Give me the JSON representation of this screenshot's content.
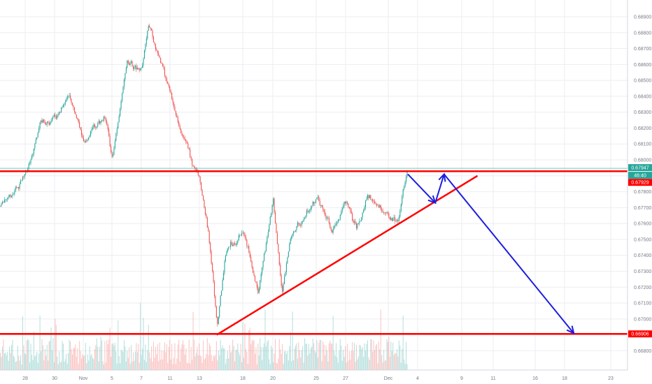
{
  "chart_data": {
    "type": "candlestick",
    "title": "",
    "xlabel": "",
    "ylabel": "",
    "grid": true,
    "ylim": [
      0.6675,
      0.6895
    ],
    "x_ticks": [
      "28",
      "30",
      "Nov",
      "5",
      "7",
      "11",
      "13",
      "18",
      "20",
      "25",
      "27",
      "Dec",
      "4",
      "9",
      "11",
      "16",
      "18",
      "23"
    ],
    "y_ticks": [
      "0.68900",
      "0.68800",
      "0.68700",
      "0.68600",
      "0.68500",
      "0.68400",
      "0.68300",
      "0.68200",
      "0.68100",
      "0.68000",
      "0.67900",
      "0.67800",
      "0.67700",
      "0.67600",
      "0.67500",
      "0.67400",
      "0.67300",
      "0.67200",
      "0.67100",
      "0.67000",
      "0.66900",
      "0.66800"
    ],
    "price_path": [
      {
        "date": "Oct 27",
        "price": 0.6777
      },
      {
        "date": "Oct 28",
        "price": 0.6788
      },
      {
        "date": "Oct 29",
        "price": 0.6824
      },
      {
        "date": "Oct 30",
        "price": 0.6826
      },
      {
        "date": "Oct 31",
        "price": 0.6838
      },
      {
        "date": "Nov 1",
        "price": 0.6812
      },
      {
        "date": "Nov 4",
        "price": 0.6828
      },
      {
        "date": "Nov 5",
        "price": 0.68
      },
      {
        "date": "Nov 6",
        "price": 0.6862
      },
      {
        "date": "Nov 7",
        "price": 0.6855
      },
      {
        "date": "Nov 8",
        "price": 0.6888
      },
      {
        "date": "Nov 11",
        "price": 0.684
      },
      {
        "date": "Nov 12",
        "price": 0.681
      },
      {
        "date": "Nov 13",
        "price": 0.6788
      },
      {
        "date": "Nov 14",
        "price": 0.6755
      },
      {
        "date": "Nov 15",
        "price": 0.6695
      },
      {
        "date": "Nov 16",
        "price": 0.674
      },
      {
        "date": "Nov 18",
        "price": 0.6755
      },
      {
        "date": "Nov 19",
        "price": 0.672
      },
      {
        "date": "Nov 20",
        "price": 0.6774
      },
      {
        "date": "Nov 21",
        "price": 0.6716
      },
      {
        "date": "Nov 22",
        "price": 0.675
      },
      {
        "date": "Nov 25",
        "price": 0.6777
      },
      {
        "date": "Nov 26",
        "price": 0.6755
      },
      {
        "date": "Nov 27",
        "price": 0.6775
      },
      {
        "date": "Nov 28",
        "price": 0.6757
      },
      {
        "date": "Nov 29",
        "price": 0.6778
      },
      {
        "date": "Dec 2",
        "price": 0.6758
      },
      {
        "date": "Dec 3",
        "price": 0.6795
      }
    ],
    "annotations": {
      "resistance_level": 0.67929,
      "support_level": 0.66906,
      "trendline": {
        "from": {
          "date": "Nov 15",
          "price": 0.669
        },
        "to": {
          "date": "Dec 10",
          "price": 0.679
        }
      },
      "projection": [
        {
          "date": "Dec 3",
          "price": 0.6791
        },
        {
          "date": "Dec 6",
          "price": 0.6773
        },
        {
          "date": "Dec 7",
          "price": 0.6791
        },
        {
          "date": "Dec 19",
          "price": 0.6691
        }
      ]
    },
    "price_tags": {
      "last_price": "0.67947",
      "countdown": "46:40",
      "resistance": "0.67929",
      "support": "0.66906"
    },
    "colors": {
      "up": "#26a69a",
      "down": "#ef5350",
      "level_line": "#ff0000",
      "projection": "#1d1de0",
      "grid": "#edeef2",
      "price_line": "#26a69a"
    }
  }
}
